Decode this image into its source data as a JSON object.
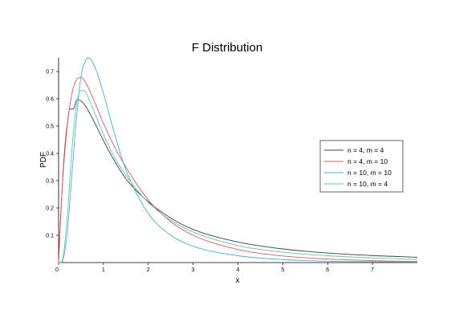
{
  "chart_data": {
    "type": "line",
    "title": "F Distribution",
    "xlabel": "x",
    "ylabel": "PDF",
    "xlim": [
      0,
      8
    ],
    "ylim": [
      0,
      0.75
    ],
    "x_ticks": [
      0,
      1,
      2,
      3,
      4,
      5,
      6,
      7
    ],
    "x_tick_labels": [
      "0",
      "1",
      "2",
      "3",
      "4",
      "5",
      "6",
      "7"
    ],
    "y_ticks": [
      0.1,
      0.2,
      0.3,
      0.4,
      0.5,
      0.6,
      0.7
    ],
    "y_tick_labels": [
      "0.1",
      "0.2",
      "0.3",
      "0.4",
      "0.5",
      "0.6",
      "0.7"
    ],
    "grid": false,
    "legend_position": "right",
    "series": [
      {
        "name": "n = 4, m = 4",
        "color": "#404040",
        "x": [
          0,
          0.05,
          0.1,
          0.15,
          0.2,
          0.25,
          0.333,
          0.4,
          0.5,
          0.6,
          0.7,
          0.8,
          1.0,
          1.2,
          1.5,
          2.0,
          2.5,
          3.0,
          4.0,
          5.0,
          6.0,
          7.0,
          8.0
        ],
        "y": [
          0,
          0.1814,
          0.3306,
          0.4412,
          0.5144,
          0.5625,
          0.5625,
          0.5948,
          0.5926,
          0.5737,
          0.545,
          0.5134,
          0.4474,
          0.3858,
          0.3071,
          0.2231,
          0.1633,
          0.1214,
          0.0753,
          0.05,
          0.0351,
          0.0257,
          0.0195
        ]
      },
      {
        "name": "n = 4, m = 10",
        "color": "#e05a5a",
        "x": [
          0,
          0.05,
          0.1,
          0.2,
          0.3,
          0.4,
          0.5,
          0.6,
          0.8,
          1.0,
          1.2,
          1.5,
          2.0,
          2.5,
          3.0,
          4.0,
          5.0,
          6.0,
          7.0,
          8.0
        ],
        "y": [
          0,
          0.175,
          0.32,
          0.51,
          0.62,
          0.67,
          0.678,
          0.66,
          0.59,
          0.51,
          0.44,
          0.35,
          0.23,
          0.15,
          0.1,
          0.048,
          0.024,
          0.013,
          0.007,
          0.004
        ]
      },
      {
        "name": "n = 10, m = 10",
        "color": "#4aaed6",
        "x": [
          0,
          0.1,
          0.2,
          0.3,
          0.4,
          0.5,
          0.6,
          0.667,
          0.8,
          1.0,
          1.2,
          1.5,
          2.0,
          2.5,
          3.0,
          4.0,
          5.0,
          6.0,
          7.0,
          8.0
        ],
        "y": [
          0,
          0.011,
          0.12,
          0.33,
          0.53,
          0.68,
          0.74,
          0.75,
          0.72,
          0.62,
          0.5,
          0.34,
          0.18,
          0.1,
          0.06,
          0.025,
          0.011,
          0.005,
          0.003,
          0.002
        ]
      },
      {
        "name": "n = 10, m = 4",
        "color": "#5fc7a8",
        "x": [
          0,
          0.1,
          0.2,
          0.3,
          0.4,
          0.5,
          0.6,
          0.7,
          0.8,
          1.0,
          1.2,
          1.5,
          2.0,
          2.5,
          3.0,
          4.0,
          5.0,
          6.0,
          7.0,
          8.0
        ],
        "y": [
          0,
          0.02,
          0.18,
          0.42,
          0.58,
          0.63,
          0.625,
          0.59,
          0.55,
          0.47,
          0.4,
          0.32,
          0.22,
          0.155,
          0.112,
          0.062,
          0.038,
          0.025,
          0.017,
          0.012
        ]
      }
    ]
  }
}
